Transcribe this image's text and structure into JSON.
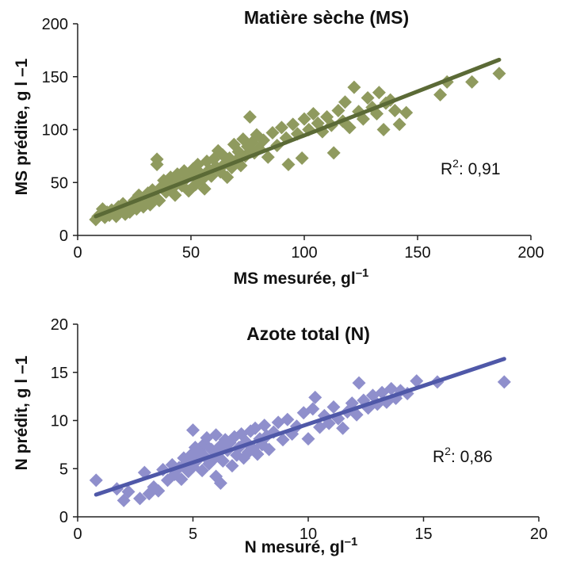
{
  "chart_data": [
    {
      "type": "scatter",
      "title": "Matière sèche (MS)",
      "xlabel": "MS mesurée, gl",
      "xlabel_sup": "–1",
      "ylabel": "MS prédite, g l –1",
      "xlim": [
        0,
        200
      ],
      "ylim": [
        0,
        200
      ],
      "xticks": [
        0,
        50,
        100,
        150,
        200
      ],
      "yticks": [
        0,
        50,
        100,
        150,
        200
      ],
      "xtick_labels": [
        "0",
        "50",
        "100",
        "150",
        "200"
      ],
      "ytick_labels": [
        "0",
        "50",
        "100",
        "150",
        "200"
      ],
      "r2_prefix": "R",
      "r2_sup": "2",
      "r2_value": ": 0,91",
      "marker_color": "#8f9a5e",
      "line_color": "#5b6a36",
      "fit": {
        "x": [
          8,
          186
        ],
        "y": [
          18,
          166
        ]
      },
      "points": [
        [
          8,
          15
        ],
        [
          9,
          18
        ],
        [
          10,
          20
        ],
        [
          11,
          25
        ],
        [
          12,
          17
        ],
        [
          13,
          22
        ],
        [
          14,
          19
        ],
        [
          15,
          24
        ],
        [
          16,
          21
        ],
        [
          17,
          18
        ],
        [
          18,
          27
        ],
        [
          19,
          23
        ],
        [
          20,
          30
        ],
        [
          21,
          20
        ],
        [
          22,
          26
        ],
        [
          23,
          22
        ],
        [
          24,
          29
        ],
        [
          25,
          33
        ],
        [
          26,
          25
        ],
        [
          27,
          38
        ],
        [
          28,
          31
        ],
        [
          29,
          27
        ],
        [
          30,
          35
        ],
        [
          31,
          40
        ],
        [
          32,
          29
        ],
        [
          33,
          43
        ],
        [
          34,
          37
        ],
        [
          35,
          72
        ],
        [
          35,
          67
        ],
        [
          36,
          33
        ],
        [
          37,
          46
        ],
        [
          38,
          52
        ],
        [
          39,
          41
        ],
        [
          40,
          49
        ],
        [
          41,
          55
        ],
        [
          42,
          45
        ],
        [
          43,
          38
        ],
        [
          44,
          58
        ],
        [
          45,
          51
        ],
        [
          46,
          47
        ],
        [
          47,
          61
        ],
        [
          48,
          54
        ],
        [
          49,
          42
        ],
        [
          50,
          57
        ],
        [
          51,
          63
        ],
        [
          52,
          48
        ],
        [
          53,
          67
        ],
        [
          54,
          59
        ],
        [
          55,
          53
        ],
        [
          56,
          44
        ],
        [
          57,
          70
        ],
        [
          58,
          62
        ],
        [
          59,
          56
        ],
        [
          60,
          72
        ],
        [
          61,
          65
        ],
        [
          62,
          80
        ],
        [
          63,
          60
        ],
        [
          64,
          76
        ],
        [
          65,
          68
        ],
        [
          66,
          55
        ],
        [
          67,
          73
        ],
        [
          68,
          64
        ],
        [
          69,
          86
        ],
        [
          70,
          71
        ],
        [
          71,
          79
        ],
        [
          72,
          66
        ],
        [
          73,
          91
        ],
        [
          74,
          75
        ],
        [
          75,
          84
        ],
        [
          76,
          112
        ],
        [
          77,
          88
        ],
        [
          78,
          78
        ],
        [
          79,
          95
        ],
        [
          80,
          82
        ],
        [
          82,
          90
        ],
        [
          84,
          74
        ],
        [
          86,
          97
        ],
        [
          88,
          85
        ],
        [
          90,
          102
        ],
        [
          92,
          92
        ],
        [
          93,
          67
        ],
        [
          95,
          105
        ],
        [
          97,
          96
        ],
        [
          99,
          73
        ],
        [
          100,
          110
        ],
        [
          102,
          100
        ],
        [
          104,
          115
        ],
        [
          106,
          106
        ],
        [
          108,
          98
        ],
        [
          110,
          112
        ],
        [
          112,
          104
        ],
        [
          113,
          78
        ],
        [
          115,
          118
        ],
        [
          117,
          108
        ],
        [
          118,
          126
        ],
        [
          120,
          102
        ],
        [
          122,
          140
        ],
        [
          124,
          117
        ],
        [
          126,
          110
        ],
        [
          128,
          130
        ],
        [
          130,
          121
        ],
        [
          132,
          115
        ],
        [
          133,
          135
        ],
        [
          135,
          100
        ],
        [
          136,
          125
        ],
        [
          138,
          128
        ],
        [
          140,
          118
        ],
        [
          142,
          105
        ],
        [
          145,
          116
        ],
        [
          160,
          133
        ],
        [
          163,
          145
        ],
        [
          174,
          145
        ],
        [
          186,
          153
        ]
      ]
    },
    {
      "type": "scatter",
      "title": "Azote total (N)",
      "xlabel": "N mesuré, gl",
      "xlabel_sup": "–1",
      "ylabel": "N prédit, g l –1",
      "xlim": [
        0,
        20
      ],
      "ylim": [
        0,
        20
      ],
      "xticks": [
        0,
        5,
        10,
        15,
        20
      ],
      "yticks": [
        0,
        5,
        10,
        15,
        20
      ],
      "xtick_labels": [
        "0",
        "5",
        "10",
        "15",
        "20"
      ],
      "ytick_labels": [
        "0",
        "5",
        "10",
        "15",
        "20"
      ],
      "r2_prefix": "R",
      "r2_sup": "2",
      "r2_value": ": 0,86",
      "marker_color": "#8f8fcc",
      "line_color": "#4f58a8",
      "fit": {
        "x": [
          0.8,
          18.5
        ],
        "y": [
          2.3,
          16.4
        ]
      },
      "points": [
        [
          0.8,
          3.8
        ],
        [
          1.7,
          2.9
        ],
        [
          2.0,
          1.7
        ],
        [
          2.2,
          2.6
        ],
        [
          2.7,
          1.9
        ],
        [
          2.9,
          4.6
        ],
        [
          3.1,
          2.4
        ],
        [
          3.3,
          3.1
        ],
        [
          3.5,
          2.7
        ],
        [
          3.7,
          4.9
        ],
        [
          3.9,
          3.8
        ],
        [
          4.1,
          5.4
        ],
        [
          4.2,
          4.4
        ],
        [
          4.4,
          5.1
        ],
        [
          4.5,
          3.9
        ],
        [
          4.6,
          6.1
        ],
        [
          4.7,
          5.6
        ],
        [
          4.8,
          4.7
        ],
        [
          4.9,
          6.4
        ],
        [
          5.0,
          9.0
        ],
        [
          5.0,
          5.2
        ],
        [
          5.1,
          7.2
        ],
        [
          5.2,
          5.9
        ],
        [
          5.3,
          6.8
        ],
        [
          5.4,
          4.8
        ],
        [
          5.5,
          7.6
        ],
        [
          5.5,
          6.3
        ],
        [
          5.6,
          8.2
        ],
        [
          5.7,
          5.5
        ],
        [
          5.8,
          7.0
        ],
        [
          5.9,
          6.0
        ],
        [
          6.0,
          8.5
        ],
        [
          6.0,
          4.2
        ],
        [
          6.1,
          6.6
        ],
        [
          6.2,
          7.4
        ],
        [
          6.2,
          3.5
        ],
        [
          6.3,
          5.8
        ],
        [
          6.4,
          8.0
        ],
        [
          6.5,
          6.9
        ],
        [
          6.6,
          7.7
        ],
        [
          6.7,
          5.3
        ],
        [
          6.8,
          8.3
        ],
        [
          6.9,
          6.4
        ],
        [
          7.0,
          7.2
        ],
        [
          7.1,
          8.6
        ],
        [
          7.2,
          6.1
        ],
        [
          7.3,
          7.8
        ],
        [
          7.4,
          6.7
        ],
        [
          7.5,
          8.9
        ],
        [
          7.6,
          7.1
        ],
        [
          7.7,
          9.2
        ],
        [
          7.8,
          6.5
        ],
        [
          7.9,
          8.1
        ],
        [
          8.0,
          7.5
        ],
        [
          8.1,
          9.5
        ],
        [
          8.2,
          8.4
        ],
        [
          8.3,
          7.0
        ],
        [
          8.5,
          8.8
        ],
        [
          8.7,
          9.8
        ],
        [
          8.9,
          8.0
        ],
        [
          9.1,
          10.1
        ],
        [
          9.3,
          8.6
        ],
        [
          9.5,
          9.4
        ],
        [
          9.8,
          10.8
        ],
        [
          10.0,
          8.1
        ],
        [
          10.2,
          11.2
        ],
        [
          10.3,
          12.4
        ],
        [
          10.5,
          9.3
        ],
        [
          10.7,
          10.5
        ],
        [
          10.9,
          9.7
        ],
        [
          11.1,
          11.4
        ],
        [
          11.3,
          10.2
        ],
        [
          11.5,
          9.2
        ],
        [
          11.7,
          10.9
        ],
        [
          11.9,
          11.8
        ],
        [
          12.1,
          10.6
        ],
        [
          12.2,
          13.9
        ],
        [
          12.4,
          12.1
        ],
        [
          12.6,
          11.3
        ],
        [
          12.8,
          12.6
        ],
        [
          13.0,
          11.7
        ],
        [
          13.2,
          12.9
        ],
        [
          13.4,
          11.9
        ],
        [
          13.6,
          13.3
        ],
        [
          13.8,
          12.3
        ],
        [
          14.0,
          13.1
        ],
        [
          14.3,
          12.8
        ],
        [
          14.7,
          14.1
        ],
        [
          15.6,
          14.0
        ],
        [
          18.5,
          14.0
        ]
      ]
    }
  ]
}
